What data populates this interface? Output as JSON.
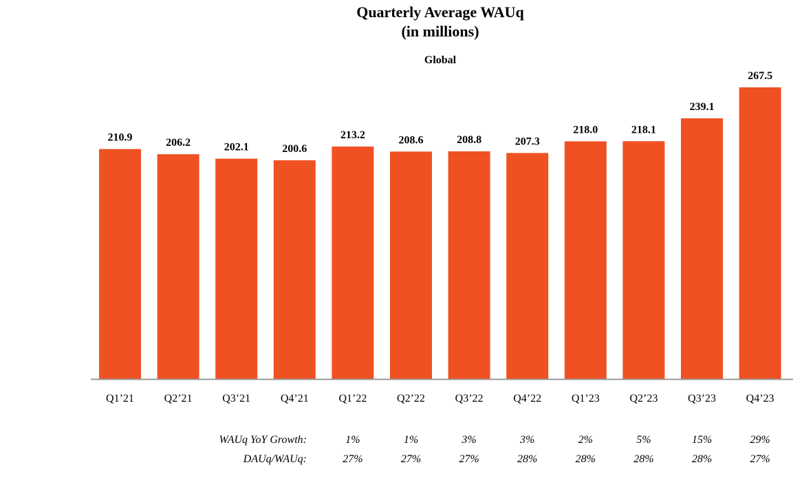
{
  "chart_data": {
    "type": "bar",
    "title": "Quarterly Average WAUq",
    "subtitle": "(in millions)",
    "panel_label": "Global",
    "categories": [
      "Q1’21",
      "Q2’21",
      "Q3’21",
      "Q4’21",
      "Q1’22",
      "Q2’22",
      "Q3’22",
      "Q4’22",
      "Q1’23",
      "Q2’23",
      "Q3’23",
      "Q4’23"
    ],
    "values": [
      210.9,
      206.2,
      202.1,
      200.6,
      213.2,
      208.6,
      208.8,
      207.3,
      218.0,
      218.1,
      239.1,
      267.5
    ],
    "value_labels": [
      "210.9",
      "206.2",
      "202.1",
      "200.6",
      "213.2",
      "208.6",
      "208.8",
      "207.3",
      "218.0",
      "218.1",
      "239.1",
      "267.5"
    ],
    "ylim": [
      0,
      280
    ],
    "grid": false,
    "bar_color": "#F05123",
    "axis_color": "#999999"
  },
  "metrics": [
    {
      "label": "WAUq YoY Growth:",
      "values": [
        "",
        "",
        "",
        "",
        "1%",
        "1%",
        "3%",
        "3%",
        "2%",
        "5%",
        "15%",
        "29%"
      ]
    },
    {
      "label": "DAUq/WAUq:",
      "values": [
        "",
        "",
        "",
        "",
        "27%",
        "27%",
        "27%",
        "28%",
        "28%",
        "28%",
        "28%",
        "27%"
      ]
    }
  ]
}
